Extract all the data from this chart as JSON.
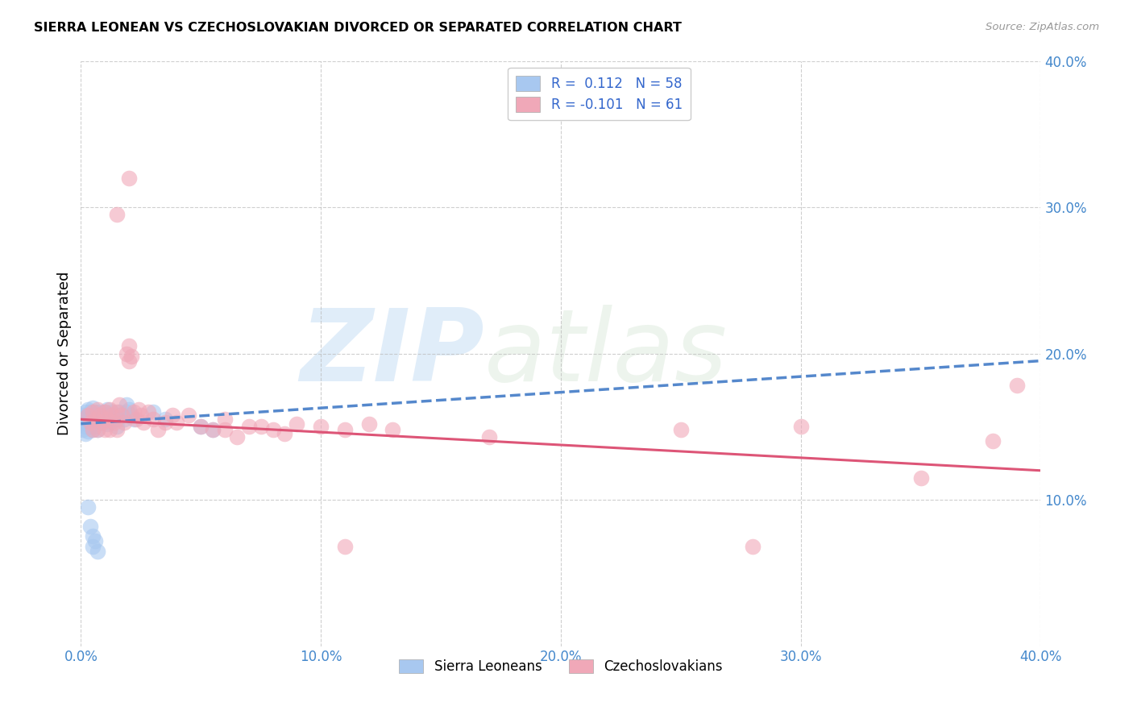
{
  "title": "SIERRA LEONEAN VS CZECHOSLOVAKIAN DIVORCED OR SEPARATED CORRELATION CHART",
  "source": "Source: ZipAtlas.com",
  "ylabel": "Divorced or Separated",
  "watermark_zip": "ZIP",
  "watermark_atlas": "atlas",
  "xlim": [
    0,
    0.4
  ],
  "ylim": [
    0,
    0.4
  ],
  "xticks": [
    0.0,
    0.1,
    0.2,
    0.3,
    0.4
  ],
  "yticks": [
    0.1,
    0.2,
    0.3,
    0.4
  ],
  "xticklabels": [
    "0.0%",
    "10.0%",
    "20.0%",
    "30.0%",
    "40.0%"
  ],
  "yticklabels": [
    "10.0%",
    "20.0%",
    "30.0%",
    "40.0%"
  ],
  "legend_labels": [
    "Sierra Leoneans",
    "Czechoslovakians"
  ],
  "blue_color": "#a8c8f0",
  "pink_color": "#f0a8b8",
  "blue_line_color": "#5588cc",
  "pink_line_color": "#dd5577",
  "R_blue": 0.112,
  "N_blue": 58,
  "R_pink": -0.101,
  "N_pink": 61,
  "blue_scatter": [
    [
      0.001,
      0.158
    ],
    [
      0.001,
      0.153
    ],
    [
      0.001,
      0.148
    ],
    [
      0.002,
      0.16
    ],
    [
      0.002,
      0.155
    ],
    [
      0.002,
      0.15
    ],
    [
      0.002,
      0.145
    ],
    [
      0.003,
      0.162
    ],
    [
      0.003,
      0.157
    ],
    [
      0.003,
      0.152
    ],
    [
      0.003,
      0.147
    ],
    [
      0.004,
      0.16
    ],
    [
      0.004,
      0.155
    ],
    [
      0.004,
      0.15
    ],
    [
      0.005,
      0.163
    ],
    [
      0.005,
      0.158
    ],
    [
      0.005,
      0.153
    ],
    [
      0.005,
      0.148
    ],
    [
      0.006,
      0.16
    ],
    [
      0.006,
      0.155
    ],
    [
      0.006,
      0.15
    ],
    [
      0.007,
      0.158
    ],
    [
      0.007,
      0.153
    ],
    [
      0.007,
      0.148
    ],
    [
      0.008,
      0.16
    ],
    [
      0.008,
      0.155
    ],
    [
      0.009,
      0.158
    ],
    [
      0.009,
      0.153
    ],
    [
      0.01,
      0.16
    ],
    [
      0.01,
      0.155
    ],
    [
      0.011,
      0.162
    ],
    [
      0.011,
      0.157
    ],
    [
      0.011,
      0.152
    ],
    [
      0.012,
      0.158
    ],
    [
      0.012,
      0.153
    ],
    [
      0.013,
      0.16
    ],
    [
      0.013,
      0.155
    ],
    [
      0.014,
      0.158
    ],
    [
      0.015,
      0.155
    ],
    [
      0.015,
      0.15
    ],
    [
      0.016,
      0.16
    ],
    [
      0.017,
      0.158
    ],
    [
      0.018,
      0.155
    ],
    [
      0.019,
      0.165
    ],
    [
      0.019,
      0.16
    ],
    [
      0.02,
      0.162
    ],
    [
      0.021,
      0.158
    ],
    [
      0.022,
      0.155
    ],
    [
      0.003,
      0.095
    ],
    [
      0.004,
      0.082
    ],
    [
      0.005,
      0.075
    ],
    [
      0.005,
      0.068
    ],
    [
      0.006,
      0.072
    ],
    [
      0.007,
      0.065
    ],
    [
      0.05,
      0.15
    ],
    [
      0.055,
      0.148
    ],
    [
      0.03,
      0.16
    ],
    [
      0.035,
      0.155
    ]
  ],
  "pink_scatter": [
    [
      0.003,
      0.158
    ],
    [
      0.004,
      0.153
    ],
    [
      0.005,
      0.16
    ],
    [
      0.005,
      0.148
    ],
    [
      0.006,
      0.155
    ],
    [
      0.007,
      0.162
    ],
    [
      0.007,
      0.148
    ],
    [
      0.008,
      0.158
    ],
    [
      0.009,
      0.153
    ],
    [
      0.01,
      0.16
    ],
    [
      0.01,
      0.148
    ],
    [
      0.011,
      0.155
    ],
    [
      0.012,
      0.162
    ],
    [
      0.012,
      0.148
    ],
    [
      0.013,
      0.158
    ],
    [
      0.014,
      0.153
    ],
    [
      0.015,
      0.16
    ],
    [
      0.015,
      0.148
    ],
    [
      0.016,
      0.165
    ],
    [
      0.017,
      0.158
    ],
    [
      0.018,
      0.153
    ],
    [
      0.019,
      0.2
    ],
    [
      0.02,
      0.205
    ],
    [
      0.02,
      0.195
    ],
    [
      0.021,
      0.198
    ],
    [
      0.022,
      0.16
    ],
    [
      0.023,
      0.155
    ],
    [
      0.024,
      0.162
    ],
    [
      0.025,
      0.158
    ],
    [
      0.026,
      0.153
    ],
    [
      0.028,
      0.16
    ],
    [
      0.03,
      0.155
    ],
    [
      0.032,
      0.148
    ],
    [
      0.035,
      0.153
    ],
    [
      0.038,
      0.158
    ],
    [
      0.04,
      0.153
    ],
    [
      0.045,
      0.158
    ],
    [
      0.05,
      0.15
    ],
    [
      0.055,
      0.148
    ],
    [
      0.06,
      0.155
    ],
    [
      0.07,
      0.15
    ],
    [
      0.08,
      0.148
    ],
    [
      0.09,
      0.152
    ],
    [
      0.1,
      0.15
    ],
    [
      0.11,
      0.148
    ],
    [
      0.12,
      0.152
    ],
    [
      0.015,
      0.295
    ],
    [
      0.02,
      0.32
    ],
    [
      0.17,
      0.143
    ],
    [
      0.25,
      0.148
    ],
    [
      0.3,
      0.15
    ],
    [
      0.35,
      0.115
    ],
    [
      0.38,
      0.14
    ],
    [
      0.39,
      0.178
    ],
    [
      0.28,
      0.068
    ],
    [
      0.11,
      0.068
    ],
    [
      0.06,
      0.148
    ],
    [
      0.065,
      0.143
    ],
    [
      0.075,
      0.15
    ],
    [
      0.085,
      0.145
    ],
    [
      0.13,
      0.148
    ]
  ]
}
